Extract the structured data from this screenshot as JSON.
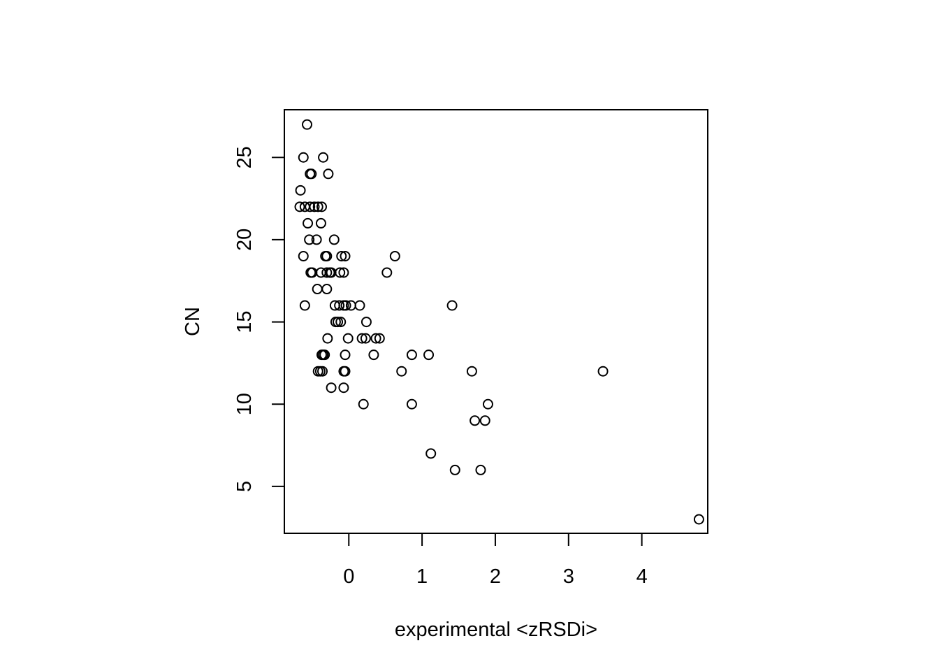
{
  "chart_data": {
    "type": "scatter",
    "title": "",
    "xlabel": "experimental <zRSDi>",
    "ylabel": "CN",
    "xlim": [
      -0.88,
      4.9
    ],
    "ylim": [
      2.15,
      27.9
    ],
    "x_ticks": [
      0,
      1,
      2,
      3,
      4
    ],
    "y_ticks": [
      5,
      10,
      15,
      20,
      25
    ],
    "grid": false,
    "legend": "none",
    "marker": "open-circle",
    "points": [
      {
        "x": -0.57,
        "y": 27
      },
      {
        "x": -0.62,
        "y": 25
      },
      {
        "x": -0.35,
        "y": 25
      },
      {
        "x": -0.53,
        "y": 24
      },
      {
        "x": -0.51,
        "y": 24
      },
      {
        "x": -0.28,
        "y": 24
      },
      {
        "x": -0.66,
        "y": 23
      },
      {
        "x": -0.67,
        "y": 22
      },
      {
        "x": -0.6,
        "y": 22
      },
      {
        "x": -0.53,
        "y": 22
      },
      {
        "x": -0.47,
        "y": 22
      },
      {
        "x": -0.42,
        "y": 22
      },
      {
        "x": -0.37,
        "y": 22
      },
      {
        "x": -0.56,
        "y": 21
      },
      {
        "x": -0.38,
        "y": 21
      },
      {
        "x": -0.54,
        "y": 20
      },
      {
        "x": -0.44,
        "y": 20
      },
      {
        "x": -0.2,
        "y": 20
      },
      {
        "x": -0.62,
        "y": 19
      },
      {
        "x": -0.32,
        "y": 19
      },
      {
        "x": -0.3,
        "y": 19
      },
      {
        "x": -0.1,
        "y": 19
      },
      {
        "x": -0.05,
        "y": 19
      },
      {
        "x": 0.63,
        "y": 19
      },
      {
        "x": -0.52,
        "y": 18
      },
      {
        "x": -0.5,
        "y": 18
      },
      {
        "x": -0.38,
        "y": 18
      },
      {
        "x": -0.3,
        "y": 18
      },
      {
        "x": -0.26,
        "y": 18
      },
      {
        "x": -0.24,
        "y": 18
      },
      {
        "x": -0.12,
        "y": 18
      },
      {
        "x": -0.07,
        "y": 18
      },
      {
        "x": 0.52,
        "y": 18
      },
      {
        "x": -0.43,
        "y": 17
      },
      {
        "x": -0.3,
        "y": 17
      },
      {
        "x": -0.6,
        "y": 16
      },
      {
        "x": -0.19,
        "y": 16
      },
      {
        "x": -0.13,
        "y": 16
      },
      {
        "x": -0.07,
        "y": 16
      },
      {
        "x": -0.04,
        "y": 16
      },
      {
        "x": 0.03,
        "y": 16
      },
      {
        "x": 0.15,
        "y": 16
      },
      {
        "x": 1.41,
        "y": 16
      },
      {
        "x": -0.18,
        "y": 15
      },
      {
        "x": -0.15,
        "y": 15
      },
      {
        "x": -0.11,
        "y": 15
      },
      {
        "x": 0.24,
        "y": 15
      },
      {
        "x": -0.29,
        "y": 14
      },
      {
        "x": -0.01,
        "y": 14
      },
      {
        "x": 0.18,
        "y": 14
      },
      {
        "x": 0.23,
        "y": 14
      },
      {
        "x": 0.37,
        "y": 14
      },
      {
        "x": 0.42,
        "y": 14
      },
      {
        "x": -0.37,
        "y": 13
      },
      {
        "x": -0.35,
        "y": 13
      },
      {
        "x": -0.33,
        "y": 13
      },
      {
        "x": -0.05,
        "y": 13
      },
      {
        "x": 0.34,
        "y": 13
      },
      {
        "x": 0.86,
        "y": 13
      },
      {
        "x": 1.09,
        "y": 13
      },
      {
        "x": -0.42,
        "y": 12
      },
      {
        "x": -0.39,
        "y": 12
      },
      {
        "x": -0.36,
        "y": 12
      },
      {
        "x": -0.07,
        "y": 12
      },
      {
        "x": -0.05,
        "y": 12
      },
      {
        "x": 0.72,
        "y": 12
      },
      {
        "x": 1.68,
        "y": 12
      },
      {
        "x": 3.47,
        "y": 12
      },
      {
        "x": -0.24,
        "y": 11
      },
      {
        "x": -0.07,
        "y": 11
      },
      {
        "x": 0.2,
        "y": 10
      },
      {
        "x": 0.86,
        "y": 10
      },
      {
        "x": 1.9,
        "y": 10
      },
      {
        "x": 1.72,
        "y": 9
      },
      {
        "x": 1.86,
        "y": 9
      },
      {
        "x": 1.12,
        "y": 7
      },
      {
        "x": 1.45,
        "y": 6
      },
      {
        "x": 1.8,
        "y": 6
      },
      {
        "x": 4.78,
        "y": 3
      }
    ]
  }
}
